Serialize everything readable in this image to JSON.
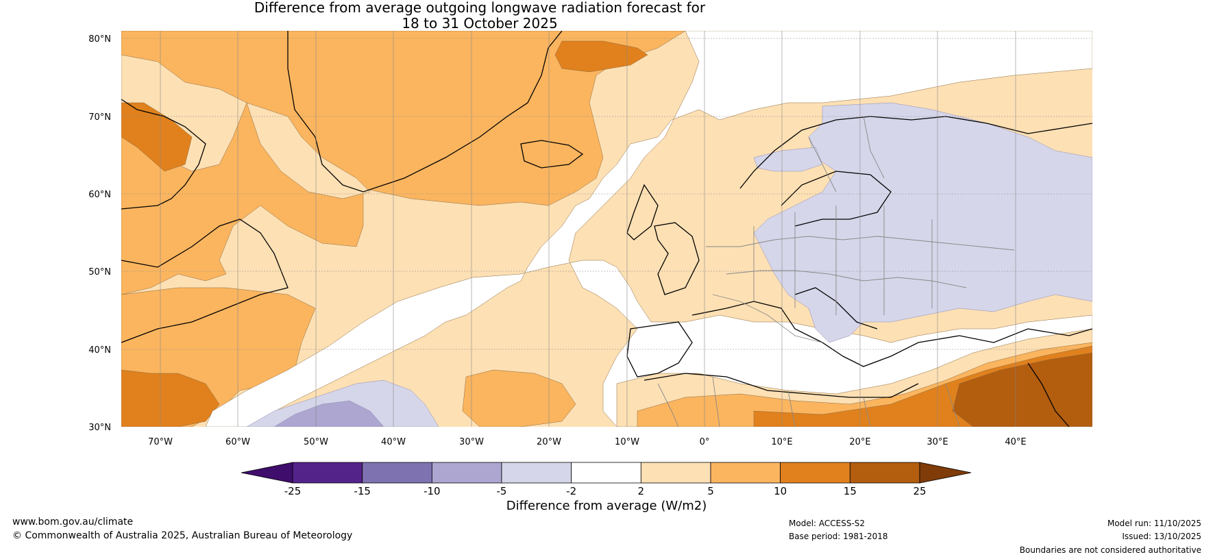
{
  "title": {
    "line1": "Difference from average outgoing longwave radiation forecast for",
    "line2": "18 to 31 October 2025"
  },
  "map": {
    "projection": "plate-carree",
    "lon_range": [
      -75,
      50
    ],
    "lat_range": [
      30,
      81
    ],
    "lat_labels": [
      "80°N",
      "70°N",
      "60°N",
      "50°N",
      "40°N",
      "30°N"
    ],
    "lon_labels": [
      "70°W",
      "60°W",
      "50°W",
      "40°W",
      "30°W",
      "20°W",
      "10°W",
      "0°",
      "10°E",
      "20°E",
      "30°E",
      "40°E"
    ]
  },
  "colorbar": {
    "ticks": [
      "-25",
      "-15",
      "-10",
      "-5",
      "-2",
      "2",
      "5",
      "10",
      "15",
      "25"
    ],
    "colors": [
      "#3f0d6b",
      "#54238a",
      "#7f72b1",
      "#aca6d0",
      "#d6d6ea",
      "#ffffff",
      "#fde0b4",
      "#fbb55f",
      "#e0811d",
      "#b35d0f",
      "#7f3b08"
    ],
    "title": "Difference from average (W/m2)"
  },
  "footer": {
    "website": "www.bom.gov.au/climate",
    "copyright": "© Commonwealth of Australia 2025, Australian Bureau of Meteorology",
    "model": "Model: ACCESS-S2",
    "base_period": "Base period: 1981-2018",
    "model_run": "Model run: 11/10/2025",
    "issued": "Issued: 13/10/2025",
    "disclaimer": "Boundaries are not considered authoritative"
  }
}
